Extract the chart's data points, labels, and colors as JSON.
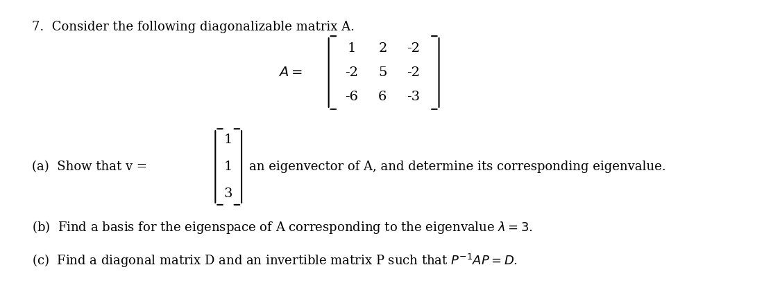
{
  "bg_color": "#ffffff",
  "text_color": "#000000",
  "figsize": [
    11.24,
    4.09
  ],
  "dpi": 100,
  "title_text": "7.  Consider the following diagonalizable matrix A.",
  "matrix_A": [
    [
      1,
      2,
      -2
    ],
    [
      -2,
      5,
      -2
    ],
    [
      -6,
      6,
      -3
    ]
  ],
  "part_a": "(a)  Show that v =",
  "vector_v": [
    1,
    1,
    3
  ],
  "part_a_cont": "an eigenvector of A, and determine its corresponding eigenvalue.",
  "part_b": "(b)  Find a basis for the eigenspace of A corresponding to the eigenvalue \\u03bb = 3.",
  "part_c": "(c)  Find a diagonal matrix D and an invertible matrix P such that $P^{-1}AP = D$.",
  "font_size": 13,
  "math_font_size": 13
}
